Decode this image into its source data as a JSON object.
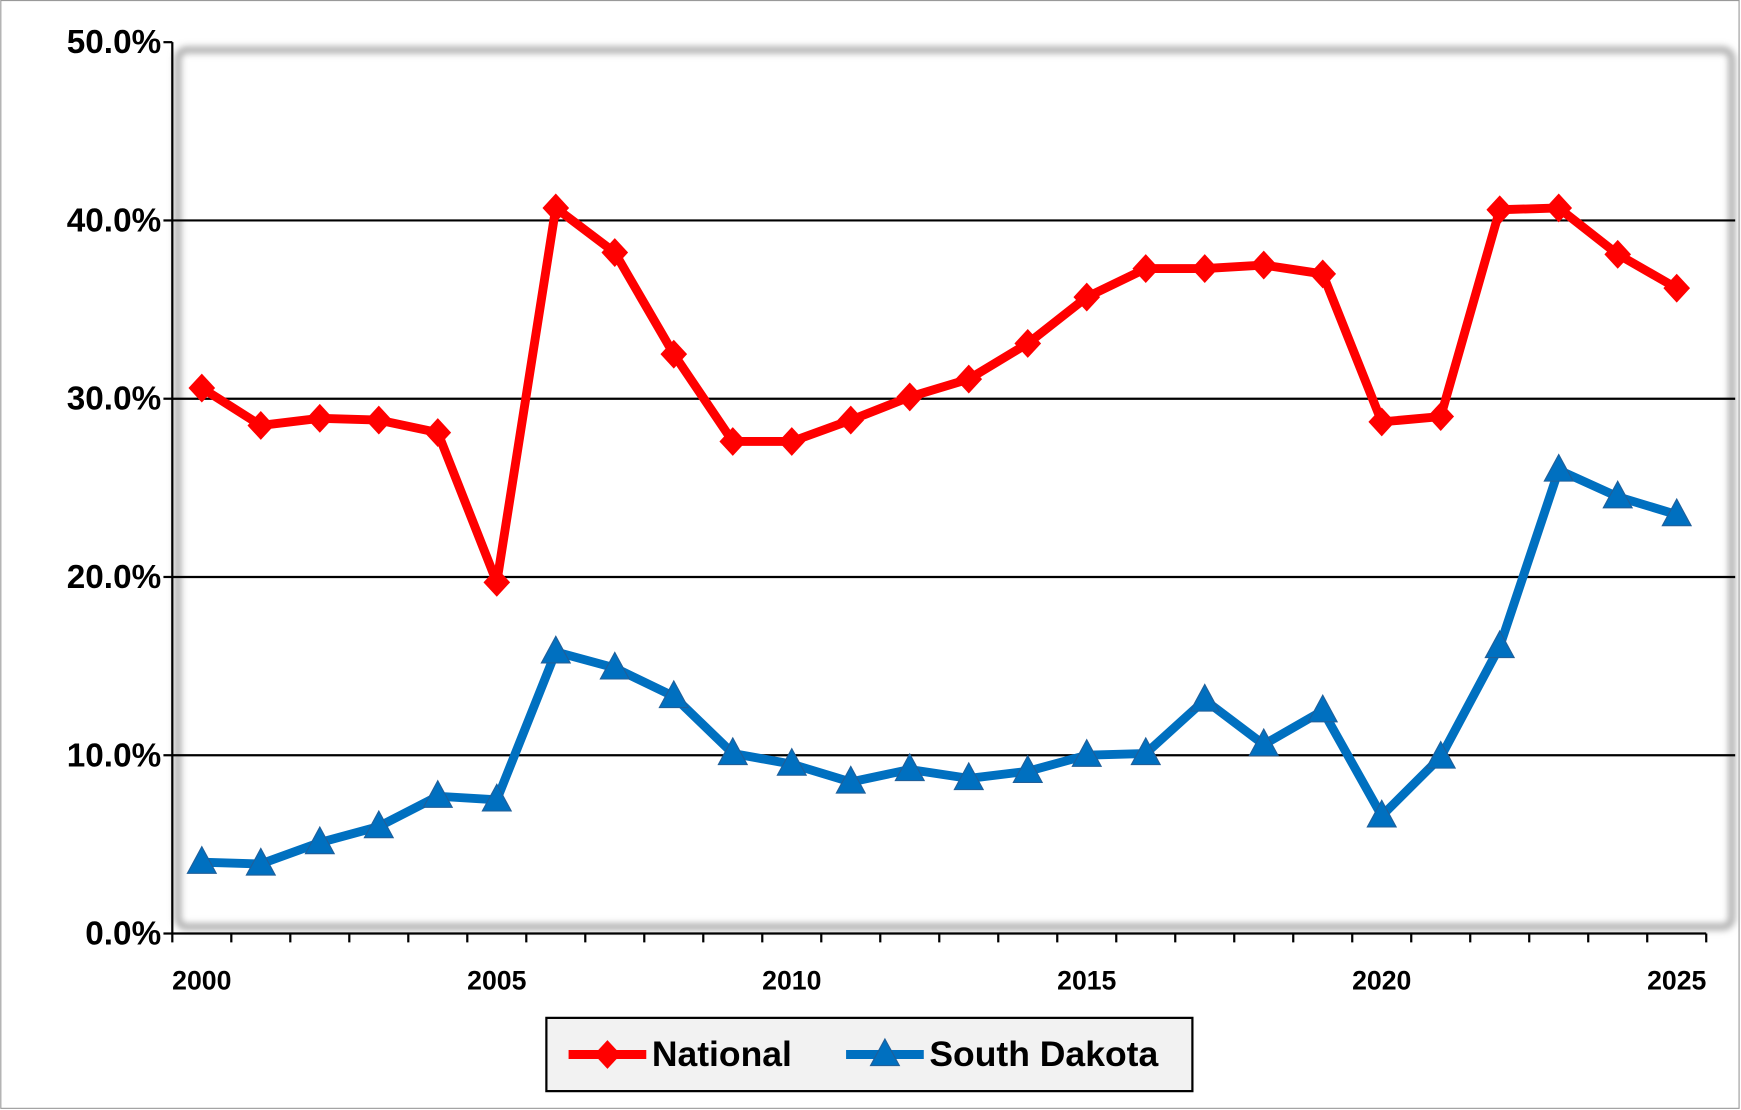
{
  "chart_data": {
    "type": "line",
    "categories": [
      "2000",
      null,
      null,
      null,
      null,
      "2005",
      null,
      null,
      null,
      null,
      "2010",
      null,
      null,
      null,
      null,
      "2015",
      null,
      null,
      null,
      null,
      "2020",
      null,
      null,
      null,
      null,
      "2025"
    ],
    "series": [
      {
        "name": "National",
        "color": "#ff0000",
        "marker": "diamond",
        "values": [
          30.6,
          28.5,
          28.9,
          28.8,
          28.1,
          19.7,
          40.7,
          38.2,
          32.5,
          27.6,
          27.6,
          28.8,
          30.1,
          31.1,
          33.1,
          35.7,
          37.3,
          37.3,
          37.5,
          37.0,
          28.7,
          29.0,
          40.6,
          40.7,
          38.1,
          36.2
        ]
      },
      {
        "name": "South Dakota",
        "color": "#0070c0",
        "marker": "triangle",
        "values": [
          4.0,
          3.9,
          5.1,
          6.0,
          7.7,
          7.5,
          15.8,
          14.9,
          13.3,
          10.1,
          9.5,
          8.5,
          9.2,
          8.7,
          9.1,
          10.0,
          10.1,
          13.1,
          10.6,
          12.5,
          6.6,
          9.9,
          16.1,
          26.0,
          24.5,
          23.5
        ]
      }
    ],
    "ylim": [
      0,
      50
    ],
    "yticks": [
      {
        "value": 0,
        "label": "0.0%"
      },
      {
        "value": 10,
        "label": "10.0%"
      },
      {
        "value": 20,
        "label": "20.0%"
      },
      {
        "value": 30,
        "label": "30.0%"
      },
      {
        "value": 40,
        "label": "40.0%"
      },
      {
        "value": 50,
        "label": "50.0%"
      }
    ],
    "grid": true,
    "legend": "bottom"
  }
}
